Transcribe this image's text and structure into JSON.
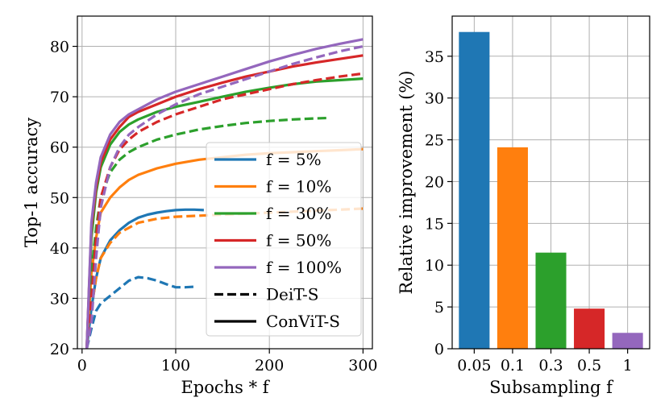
{
  "chart_data": [
    {
      "type": "line",
      "xlabel": "Epochs * f",
      "ylabel": "Top-1 accuracy",
      "xlim": [
        -5,
        310
      ],
      "ylim": [
        20,
        86
      ],
      "xticks": [
        0,
        100,
        200,
        300
      ],
      "yticks": [
        20,
        30,
        40,
        50,
        60,
        70,
        80
      ],
      "grid": true,
      "legend_position": "lower-right",
      "legend": [
        {
          "label": "f = 5%",
          "color": "#1f77b4",
          "style": "solid"
        },
        {
          "label": "f = 10%",
          "color": "#ff7f0e",
          "style": "solid"
        },
        {
          "label": "f = 30%",
          "color": "#2ca02c",
          "style": "solid"
        },
        {
          "label": "f = 50%",
          "color": "#d62728",
          "style": "solid"
        },
        {
          "label": "f = 100%",
          "color": "#9467bd",
          "style": "solid"
        },
        {
          "label": "DeiT-S",
          "color": "#000000",
          "style": "dashed"
        },
        {
          "label": "ConViT-S",
          "color": "#000000",
          "style": "solid"
        }
      ],
      "series": [
        {
          "name": "f = 5% ConViT-S",
          "color": "#1f77b4",
          "style": "solid",
          "x": [
            5,
            10,
            15,
            20,
            30,
            40,
            50,
            60,
            70,
            80,
            90,
            100,
            110,
            120,
            130
          ],
          "y": [
            20,
            28,
            34,
            38,
            41.5,
            43.5,
            45,
            46,
            46.6,
            47,
            47.3,
            47.5,
            47.6,
            47.6,
            47.5
          ]
        },
        {
          "name": "f = 5% DeiT-S",
          "color": "#1f77b4",
          "style": "dashed",
          "x": [
            5,
            10,
            15,
            20,
            30,
            40,
            50,
            60,
            70,
            80,
            90,
            100,
            110,
            120
          ],
          "y": [
            20,
            24,
            27.5,
            29,
            30.5,
            32,
            33.5,
            34.2,
            34,
            33.5,
            32.8,
            32.2,
            32.2,
            32.3
          ]
        },
        {
          "name": "f = 10% ConViT-S",
          "color": "#ff7f0e",
          "style": "solid",
          "x": [
            5,
            10,
            15,
            20,
            30,
            40,
            50,
            60,
            80,
            100,
            125,
            150,
            175,
            200,
            225,
            250,
            275,
            300
          ],
          "y": [
            20,
            35,
            42,
            47,
            50,
            52,
            53.5,
            54.5,
            55.8,
            56.7,
            57.5,
            58,
            58.5,
            58.8,
            59,
            59.2,
            59.4,
            59.6
          ]
        },
        {
          "name": "f = 10% DeiT-S",
          "color": "#ff7f0e",
          "style": "dashed",
          "x": [
            5,
            10,
            15,
            20,
            30,
            40,
            50,
            60,
            80,
            100,
            125,
            150,
            175,
            200,
            225,
            250,
            275,
            300
          ],
          "y": [
            20,
            28,
            34,
            38,
            41,
            43,
            44,
            45,
            45.8,
            46.2,
            46.4,
            46.6,
            46.8,
            47,
            47.2,
            47.4,
            47.6,
            47.8
          ]
        },
        {
          "name": "f = 30% ConViT-S",
          "color": "#2ca02c",
          "style": "solid",
          "x": [
            5,
            10,
            15,
            20,
            30,
            40,
            50,
            60,
            80,
            100,
            125,
            150,
            175,
            200,
            225,
            250,
            275,
            300
          ],
          "y": [
            20,
            42,
            51,
            56,
            60.5,
            63,
            64.5,
            65.5,
            67,
            68,
            69,
            70,
            71,
            71.8,
            72.5,
            73,
            73.3,
            73.6
          ]
        },
        {
          "name": "f = 30% DeiT-S",
          "color": "#2ca02c",
          "style": "dashed",
          "x": [
            5,
            10,
            15,
            20,
            30,
            40,
            50,
            60,
            80,
            100,
            125,
            150,
            175,
            200,
            225,
            250,
            265
          ],
          "y": [
            20,
            35,
            44,
            50,
            55,
            57.5,
            59,
            60,
            61.5,
            62.5,
            63.5,
            64.2,
            64.8,
            65.2,
            65.5,
            65.7,
            65.8
          ]
        },
        {
          "name": "f = 50% ConViT-S",
          "color": "#d62728",
          "style": "solid",
          "x": [
            5,
            10,
            15,
            20,
            30,
            40,
            50,
            60,
            80,
            100,
            125,
            150,
            175,
            200,
            225,
            250,
            275,
            300
          ],
          "y": [
            20,
            44,
            52,
            57,
            61.5,
            64,
            66,
            67,
            68.5,
            70,
            71.5,
            72.8,
            74,
            75,
            76,
            76.8,
            77.5,
            78.2
          ]
        },
        {
          "name": "f = 50% DeiT-S",
          "color": "#d62728",
          "style": "dashed",
          "x": [
            5,
            10,
            15,
            20,
            30,
            40,
            50,
            60,
            80,
            100,
            125,
            150,
            175,
            200,
            225,
            250,
            275,
            300
          ],
          "y": [
            20,
            30,
            42,
            50,
            56,
            59.5,
            61.5,
            63,
            65,
            66.5,
            68,
            69.5,
            70.5,
            71.5,
            72.5,
            73.3,
            74,
            74.6
          ]
        },
        {
          "name": "f = 100% ConViT-S",
          "color": "#9467bd",
          "style": "solid",
          "x": [
            5,
            10,
            15,
            20,
            30,
            40,
            50,
            60,
            80,
            100,
            125,
            150,
            175,
            200,
            225,
            250,
            275,
            300
          ],
          "y": [
            20,
            45,
            53,
            58,
            62.5,
            65,
            66.5,
            67.5,
            69.5,
            71,
            72.5,
            74,
            75.5,
            77,
            78.3,
            79.5,
            80.5,
            81.4
          ]
        },
        {
          "name": "f = 100% DeiT-S",
          "color": "#9467bd",
          "style": "dashed",
          "x": [
            5,
            10,
            15,
            20,
            30,
            40,
            50,
            60,
            80,
            100,
            125,
            150,
            175,
            200,
            225,
            250,
            275,
            300
          ],
          "y": [
            20,
            25,
            38,
            48,
            56,
            60,
            62.5,
            64,
            66.5,
            68.5,
            70.5,
            72,
            73.5,
            75,
            76.5,
            77.8,
            79,
            80
          ]
        }
      ]
    },
    {
      "type": "bar",
      "xlabel": "Subsampling f",
      "ylabel": "Relative improvement (%)",
      "categories": [
        "0.05",
        "0.1",
        "0.3",
        "0.5",
        "1"
      ],
      "values": [
        37.9,
        24.1,
        11.5,
        4.8,
        1.9
      ],
      "colors": [
        "#1f77b4",
        "#ff7f0e",
        "#2ca02c",
        "#d62728",
        "#9467bd"
      ],
      "ylim": [
        0,
        39.8
      ],
      "yticks": [
        0,
        5,
        10,
        15,
        20,
        25,
        30,
        35
      ],
      "grid": true
    }
  ]
}
